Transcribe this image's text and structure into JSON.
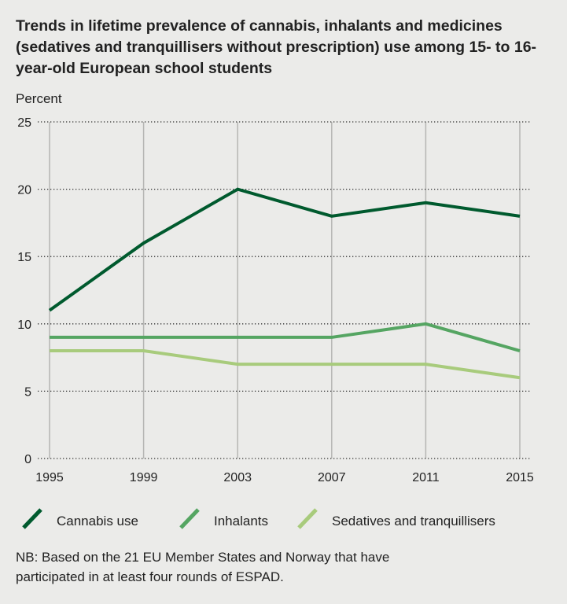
{
  "chart_data": {
    "type": "line",
    "title": "Trends in lifetime prevalence of cannabis, inhalants and medicines (sedatives and tranquillisers without prescription) use among 15- to 16-year-old European school students",
    "ylabel": "Percent",
    "xlabel": "",
    "x": [
      "1995",
      "1999",
      "2003",
      "2007",
      "2011",
      "2015"
    ],
    "yticks": [
      "0",
      "5",
      "10",
      "15",
      "20",
      "25"
    ],
    "ylim": [
      0,
      25
    ],
    "grid": "horizontal dotted, vertical solid",
    "legend": "bottom",
    "series": [
      {
        "name": "Cannabis use",
        "values": [
          11,
          16,
          20,
          18,
          19,
          18
        ],
        "color": "#005a2e"
      },
      {
        "name": "Inhalants",
        "values": [
          9,
          9,
          9,
          9,
          10,
          8
        ],
        "color": "#55a562"
      },
      {
        "name": "Sedatives and tranquillisers",
        "values": [
          8,
          8,
          7,
          7,
          7,
          6
        ],
        "color": "#a8cb7c"
      }
    ],
    "note": "NB: Based on the 21 EU Member States and Norway that have participated in at least four rounds of ESPAD."
  }
}
